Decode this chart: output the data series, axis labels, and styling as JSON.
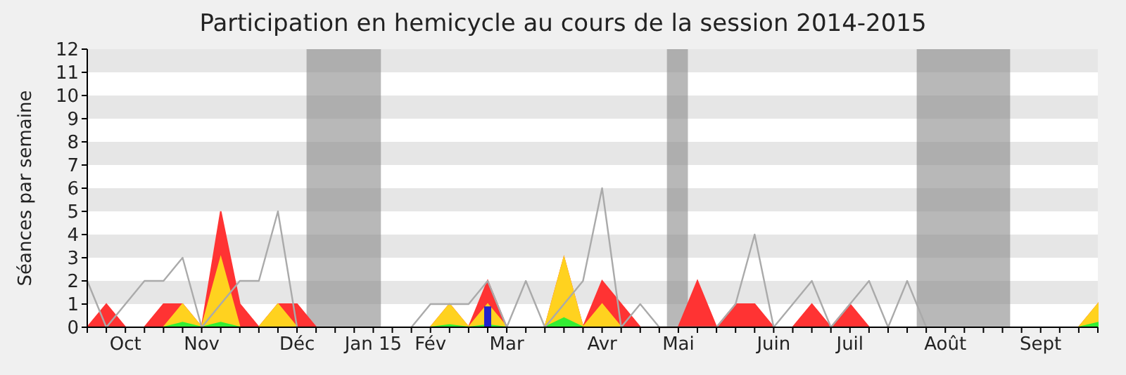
{
  "chart_data": {
    "type": "area",
    "title": "Participation en hemicycle au cours de la session 2014-2015",
    "ylabel": "Séances par semaine",
    "categories": [
      null,
      null,
      "Oct",
      null,
      null,
      null,
      "Nov",
      null,
      null,
      null,
      null,
      "Déc",
      null,
      null,
      null,
      "Jan 15",
      null,
      null,
      "Fév",
      null,
      null,
      null,
      "Mar",
      null,
      null,
      null,
      null,
      "Avr",
      null,
      null,
      null,
      "Mai",
      null,
      null,
      null,
      null,
      "Juin",
      null,
      null,
      null,
      "Juil",
      null,
      null,
      null,
      null,
      "Août",
      null,
      null,
      null,
      null,
      "Sept",
      null,
      null,
      null
    ],
    "ylim": [
      0,
      12
    ],
    "yticks": [
      0,
      1,
      2,
      3,
      4,
      5,
      6,
      7,
      8,
      9,
      10,
      11,
      12
    ],
    "series": [
      {
        "color": "#ff3333",
        "values": [
          0,
          1,
          0,
          0,
          1,
          1,
          0,
          5,
          1,
          0,
          1,
          1,
          0,
          0,
          0,
          0,
          0,
          0,
          0,
          1,
          0,
          2,
          0,
          0,
          0,
          3,
          0,
          2,
          1,
          0,
          0,
          0,
          2,
          0,
          1,
          1,
          0,
          0,
          1,
          0,
          1,
          0,
          0,
          0,
          0,
          0,
          0,
          0,
          0,
          0,
          0,
          0,
          0,
          1
        ]
      },
      {
        "color": "#ffd21f",
        "values": [
          0,
          0,
          0,
          0,
          0,
          1,
          0,
          3,
          0,
          0,
          1,
          0,
          0,
          0,
          0,
          0,
          0,
          0,
          0,
          1,
          0,
          1,
          0,
          0,
          0,
          3,
          0,
          1,
          0,
          0,
          0,
          0,
          0,
          0,
          0,
          0,
          0,
          0,
          0,
          0,
          0,
          0,
          0,
          0,
          0,
          0,
          0,
          0,
          0,
          0,
          0,
          0,
          0,
          1
        ]
      },
      {
        "color": "#33ee33",
        "values": [
          0,
          0,
          0,
          0,
          0,
          0.2,
          0,
          0.2,
          0,
          0,
          0,
          0,
          0,
          0,
          0,
          0,
          0,
          0,
          0,
          0.1,
          0,
          0.1,
          0,
          0,
          0,
          0.4,
          0,
          0,
          0,
          0,
          0,
          0,
          0,
          0,
          0,
          0,
          0,
          0,
          0,
          0,
          0,
          0,
          0,
          0,
          0,
          0,
          0,
          0,
          0,
          0,
          0,
          0,
          0,
          0.2
        ]
      },
      {
        "type": "line",
        "color": "#aaaaaa",
        "values": [
          2,
          0,
          1,
          2,
          2,
          3,
          0,
          1,
          2,
          2,
          5,
          0,
          null,
          null,
          null,
          null,
          null,
          0,
          1,
          1,
          1,
          2,
          0,
          2,
          0,
          1,
          2,
          6,
          0,
          1,
          0,
          0,
          0,
          0,
          1,
          4,
          0,
          1,
          2,
          0,
          1,
          2,
          0,
          2,
          0,
          null,
          null,
          null,
          null,
          null,
          null,
          null,
          null,
          null
        ]
      },
      {
        "type": "bar",
        "color": "#2222cc",
        "values": [
          null,
          null,
          null,
          null,
          null,
          null,
          null,
          null,
          null,
          null,
          null,
          null,
          null,
          null,
          null,
          null,
          null,
          null,
          null,
          null,
          null,
          0.9,
          null,
          null,
          null,
          null,
          null,
          null,
          null,
          null,
          null,
          null,
          null,
          null,
          null,
          null,
          null,
          null,
          null,
          null,
          null,
          null,
          null,
          null,
          null,
          null,
          null,
          null,
          null,
          null,
          null,
          null,
          null,
          null
        ]
      }
    ]
  }
}
